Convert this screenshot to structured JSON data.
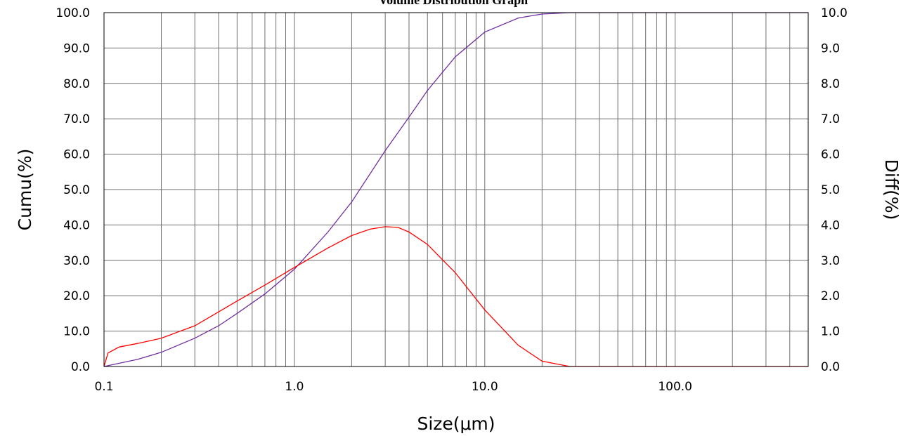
{
  "chart_data": {
    "type": "line",
    "title": "Volume Distribution Graph",
    "xlabel": "Size(μm)",
    "ylabel_left": "Cumu(%)",
    "ylabel_right": "Diff(%)",
    "x_scale": "log",
    "xlim": [
      0.1,
      500
    ],
    "ylim_left": [
      0,
      100
    ],
    "ylim_right": [
      0,
      10
    ],
    "x_tick_labels": [
      "0.1",
      "1.0",
      "10.0",
      "100.0"
    ],
    "y_left_tick_labels": [
      "0.0",
      "10.0",
      "20.0",
      "30.0",
      "40.0",
      "50.0",
      "60.0",
      "70.0",
      "80.0",
      "90.0",
      "100.0"
    ],
    "y_right_tick_labels": [
      "0.0",
      "1.0",
      "2.0",
      "3.0",
      "4.0",
      "5.0",
      "6.0",
      "7.0",
      "8.0",
      "9.0",
      "10.0"
    ],
    "grid": true,
    "series": [
      {
        "axis": "left",
        "color": "#7030a0",
        "x": [
          0.1,
          0.15,
          0.2,
          0.3,
          0.4,
          0.5,
          0.7,
          1.0,
          1.5,
          2.0,
          3.0,
          4.0,
          5.0,
          7.0,
          10.0,
          15.0,
          20.0,
          28.0,
          50.0,
          100.0,
          200.0,
          500.0
        ],
        "values": [
          0.0,
          2.0,
          4.0,
          8.0,
          11.5,
          15.0,
          20.5,
          27.5,
          38.0,
          46.5,
          61.0,
          70.5,
          78.0,
          87.5,
          94.5,
          98.5,
          99.6,
          100.0,
          100.0,
          100.0,
          100.0,
          100.0
        ]
      },
      {
        "axis": "right",
        "color": "#ff0000",
        "x": [
          0.1,
          0.105,
          0.12,
          0.15,
          0.2,
          0.3,
          0.5,
          0.7,
          1.0,
          1.5,
          2.0,
          2.5,
          3.0,
          3.5,
          4.0,
          5.0,
          7.0,
          10.0,
          15.0,
          20.0,
          25.0,
          28.0,
          50.0,
          100.0,
          200.0,
          500.0
        ],
        "values": [
          0.0,
          0.38,
          0.55,
          0.65,
          0.8,
          1.15,
          1.85,
          2.3,
          2.8,
          3.35,
          3.7,
          3.88,
          3.95,
          3.93,
          3.8,
          3.45,
          2.65,
          1.6,
          0.6,
          0.15,
          0.05,
          0.0,
          0.0,
          0.0,
          0.0,
          0.0
        ]
      }
    ]
  }
}
